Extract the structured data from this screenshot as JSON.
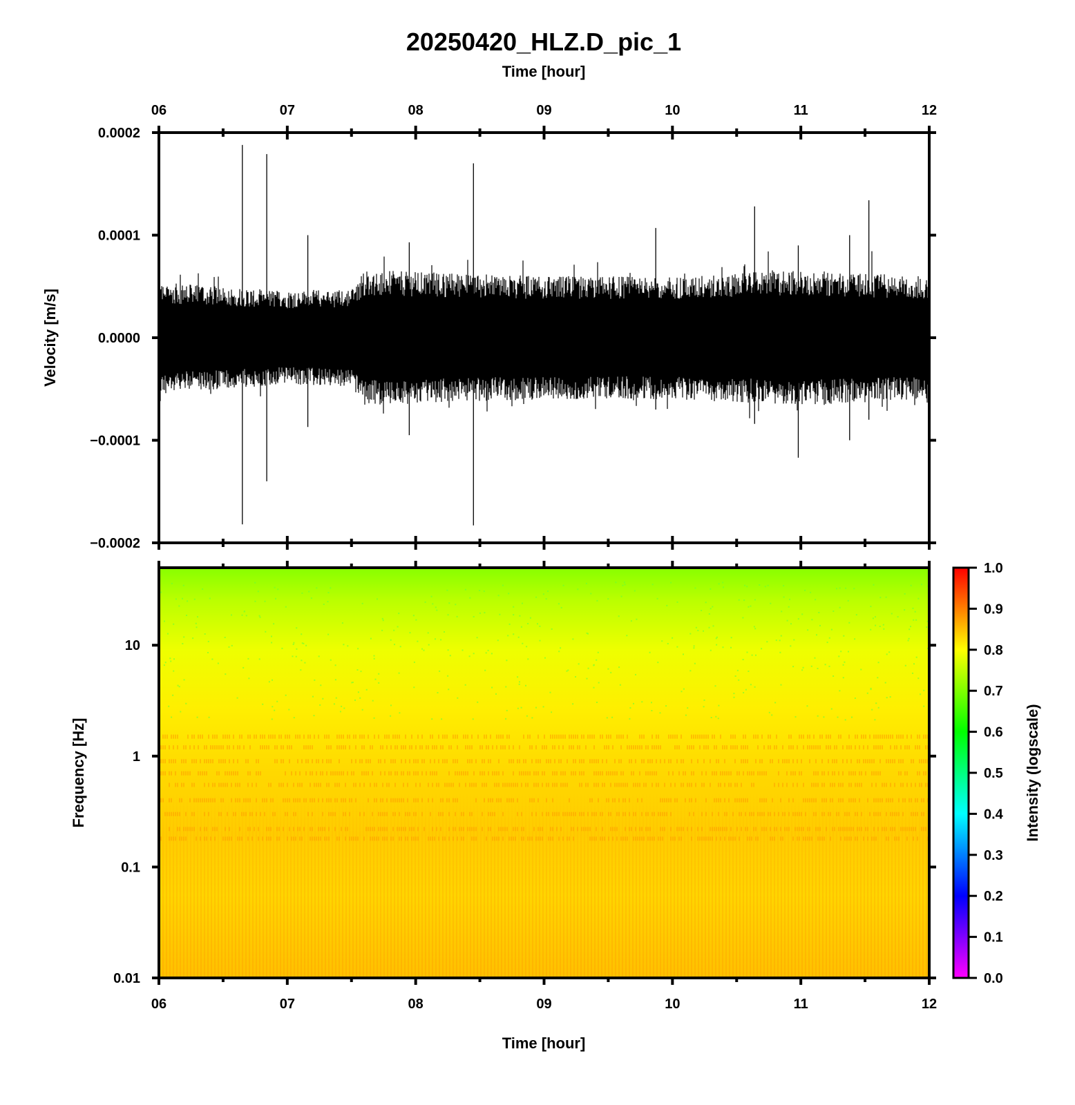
{
  "chart_data": [
    {
      "type": "line",
      "title": "20250420_HLZ.D_pic_1",
      "xlabel": "Time [hour]",
      "ylabel": "Velocity [m/s]",
      "xlim": [
        6,
        12
      ],
      "ylim": [
        -0.0002,
        0.0002
      ],
      "x_ticks": [
        "06",
        "07",
        "08",
        "09",
        "10",
        "11",
        "12"
      ],
      "y_ticks": [
        "0.0002",
        "0.0001",
        "0.0000",
        "−0.0001",
        "−0.0002"
      ],
      "y_tick_values": [
        0.0002,
        0.0001,
        0,
        -0.0001,
        -0.0002
      ],
      "background_envelope": [
        {
          "x": 6.0,
          "amplitude": 4.5e-05
        },
        {
          "x": 7.0,
          "amplitude": 3.8e-05
        },
        {
          "x": 7.5,
          "amplitude": 4e-05
        },
        {
          "x": 7.6,
          "amplitude": 5.5e-05
        },
        {
          "x": 9.0,
          "amplitude": 5e-05
        },
        {
          "x": 10.0,
          "amplitude": 5e-05
        },
        {
          "x": 11.0,
          "amplitude": 5.5e-05
        },
        {
          "x": 12.0,
          "amplitude": 5e-05
        }
      ],
      "spikes": [
        {
          "x": 6.65,
          "max": 0.000188,
          "min": -0.000182
        },
        {
          "x": 6.84,
          "max": 0.000179,
          "min": -0.00014
        },
        {
          "x": 7.16,
          "max": 0.0001,
          "min": -8.7e-05
        },
        {
          "x": 7.95,
          "max": 9.3e-05,
          "min": -9.5e-05
        },
        {
          "x": 8.45,
          "max": 0.00017,
          "min": -0.000183
        },
        {
          "x": 9.87,
          "max": 0.000107,
          "min": -7e-05
        },
        {
          "x": 10.64,
          "max": 0.000128,
          "min": -8.4e-05
        },
        {
          "x": 10.98,
          "max": 9e-05,
          "min": -0.000117
        },
        {
          "x": 11.38,
          "max": 0.0001,
          "min": -0.0001
        },
        {
          "x": 11.53,
          "max": 0.000134,
          "min": -8e-05
        }
      ]
    },
    {
      "type": "heatmap",
      "xlabel": "Time [hour]",
      "ylabel": "Frequency [Hz]",
      "xlim": [
        6,
        12
      ],
      "ylim": [
        0.01,
        50
      ],
      "y_scale": "log",
      "x_ticks": [
        "06",
        "07",
        "08",
        "09",
        "10",
        "11",
        "12"
      ],
      "y_ticks": [
        "10",
        "1",
        "0.1",
        "0.01"
      ],
      "y_tick_values": [
        10,
        1,
        0.1,
        0.01
      ],
      "colorbar": {
        "label": "Intensity (logscale)",
        "range": [
          0,
          1
        ],
        "ticks": [
          "1.0",
          "0.9",
          "0.8",
          "0.7",
          "0.6",
          "0.5",
          "0.4",
          "0.3",
          "0.2",
          "0.1",
          "0.0"
        ],
        "tick_values": [
          1.0,
          0.9,
          0.8,
          0.7,
          0.6,
          0.5,
          0.4,
          0.3,
          0.2,
          0.1,
          0.0
        ],
        "colormap": [
          "#ff00ff",
          "#0000ff",
          "#00ffff",
          "#00ff00",
          "#ffff00",
          "#ff0000"
        ]
      },
      "intensity_profile": [
        {
          "freq": 50,
          "intensity": 0.68
        },
        {
          "freq": 20,
          "intensity": 0.74
        },
        {
          "freq": 10,
          "intensity": 0.78
        },
        {
          "freq": 3,
          "intensity": 0.81
        },
        {
          "freq": 1,
          "intensity": 0.84
        },
        {
          "freq": 0.2,
          "intensity": 0.86
        },
        {
          "freq": 0.05,
          "intensity": 0.82
        },
        {
          "freq": 0.01,
          "intensity": 0.84
        }
      ]
    }
  ]
}
